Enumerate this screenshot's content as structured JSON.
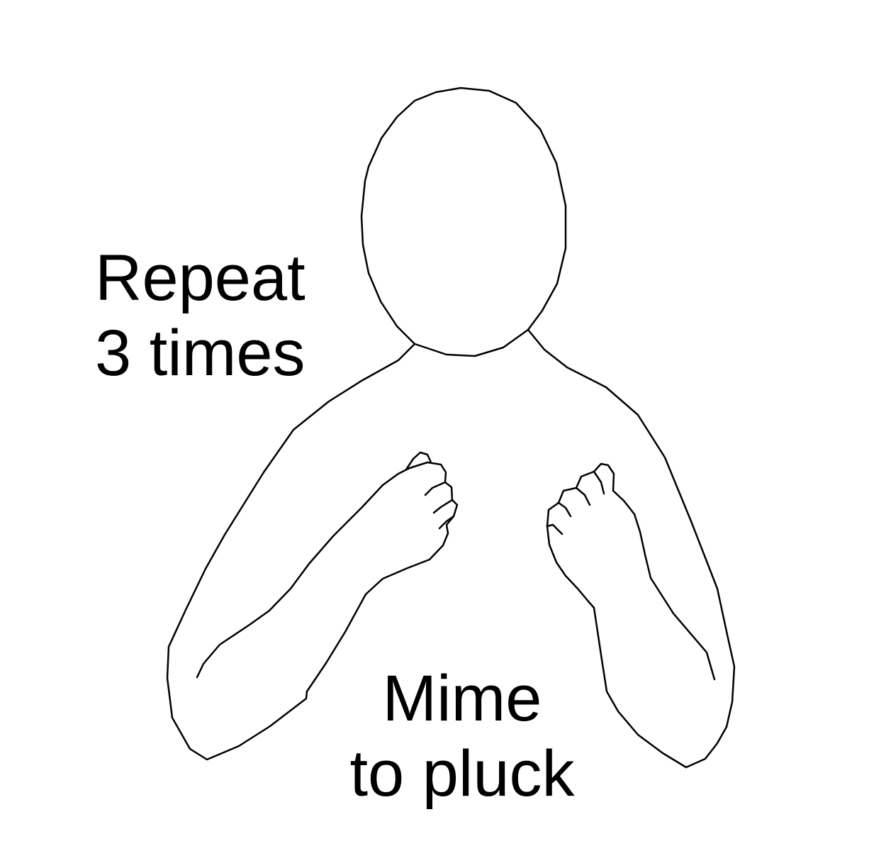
{
  "captions": {
    "repeat": {
      "line1": "Repeat",
      "line2": "3 times"
    },
    "mime": {
      "line1": "Mime",
      "line2": "to pluck"
    }
  },
  "colors": {
    "ink": "#000000",
    "background": "#ffffff"
  }
}
